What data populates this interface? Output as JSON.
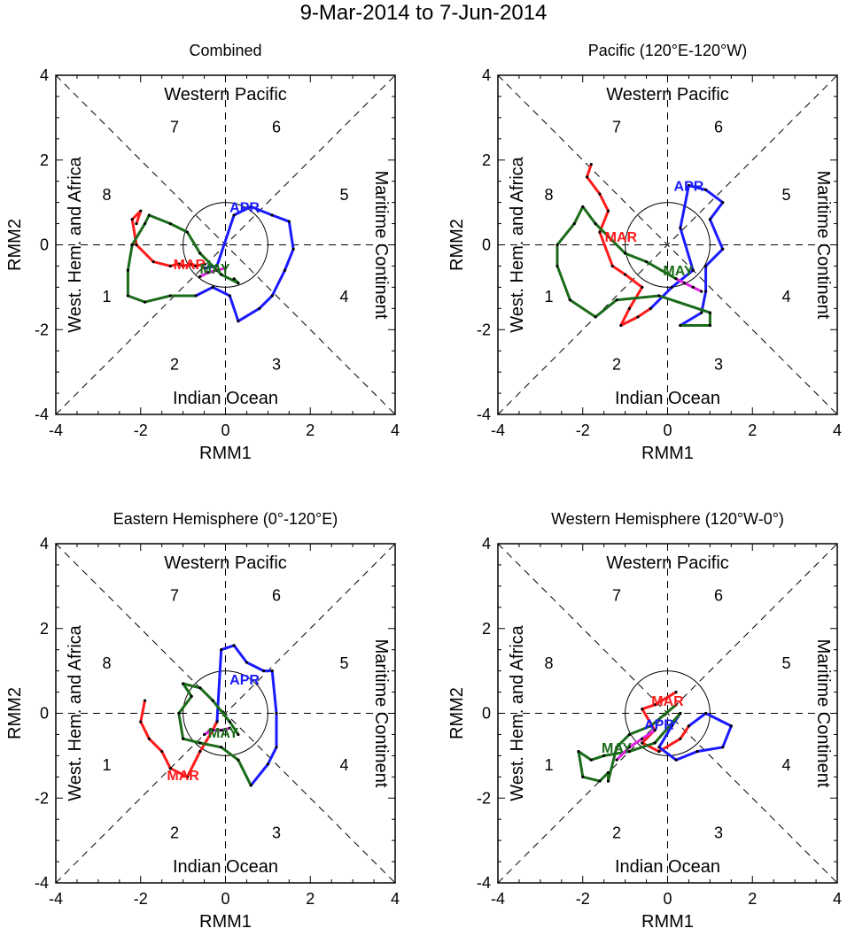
{
  "title": "9-Mar-2014 to 7-Jun-2014",
  "colors": {
    "MAR": "#ff1a1a",
    "APR": "#1a1aff",
    "MAY": "#1a6b1a",
    "JUN": "#e020e0",
    "axis": "#000000"
  },
  "chart_data": [
    {
      "type": "line",
      "title": "Combined",
      "xlabel": "RMM1",
      "ylabel": "RMM2",
      "xlim": [
        -4,
        4
      ],
      "ylim": [
        -4,
        4
      ],
      "ticks": [
        "-4",
        "-2",
        "0",
        "2",
        "4"
      ],
      "phase_numbers": [
        "1",
        "2",
        "3",
        "4",
        "5",
        "6",
        "7",
        "8"
      ],
      "region_labels": {
        "top": "Western Pacific",
        "bottom": "Indian Ocean",
        "left": "West. Hem. and Africa",
        "right": "Maritime Continent"
      },
      "month_labels": [
        {
          "text": "MAR",
          "x": -0.85,
          "y": -0.45,
          "month": "MAR"
        },
        {
          "text": "APR",
          "x": 0.45,
          "y": 0.9,
          "month": "APR"
        },
        {
          "text": "MAY",
          "x": -0.25,
          "y": -0.55,
          "month": "MAY"
        }
      ],
      "series": [
        {
          "name": "MAR",
          "month": "MAR",
          "points": [
            [
              -2.1,
              0.5
            ],
            [
              -2.0,
              0.8
            ],
            [
              -2.2,
              0.6
            ],
            [
              -2.1,
              0.0
            ],
            [
              -1.7,
              -0.4
            ],
            [
              -1.3,
              -0.5
            ],
            [
              -1.1,
              -0.45
            ],
            [
              -1.0,
              -0.5
            ],
            [
              -0.8,
              -0.45
            ],
            [
              -0.7,
              -0.5
            ],
            [
              -0.5,
              -0.45
            ]
          ]
        },
        {
          "name": "APR",
          "month": "APR",
          "points": [
            [
              -0.5,
              -0.55
            ],
            [
              -0.2,
              -0.5
            ],
            [
              0.2,
              0.7
            ],
            [
              0.6,
              0.9
            ],
            [
              1.1,
              0.7
            ],
            [
              1.5,
              0.55
            ],
            [
              1.6,
              -0.1
            ],
            [
              1.4,
              -0.6
            ],
            [
              1.1,
              -1.2
            ],
            [
              0.8,
              -1.5
            ],
            [
              0.3,
              -1.8
            ],
            [
              0.1,
              -1.2
            ],
            [
              -0.3,
              -1.0
            ],
            [
              -0.7,
              -1.2
            ]
          ]
        },
        {
          "name": "MAY",
          "month": "MAY",
          "points": [
            [
              -0.7,
              -1.2
            ],
            [
              -1.3,
              -1.2
            ],
            [
              -1.9,
              -1.35
            ],
            [
              -2.3,
              -1.2
            ],
            [
              -2.3,
              -0.6
            ],
            [
              -2.2,
              0.0
            ],
            [
              -1.9,
              0.5
            ],
            [
              -1.8,
              0.7
            ],
            [
              -1.3,
              0.5
            ],
            [
              -0.9,
              0.3
            ],
            [
              -0.6,
              -0.2
            ],
            [
              -0.1,
              -0.7
            ],
            [
              0.3,
              -0.9
            ],
            [
              0.2,
              -0.8
            ]
          ]
        },
        {
          "name": "JUN",
          "month": "JUN",
          "points": [
            [
              -0.6,
              -0.75
            ],
            [
              -0.4,
              -0.65
            ],
            [
              -0.2,
              -0.6
            ],
            [
              0.0,
              -0.55
            ]
          ]
        }
      ]
    },
    {
      "type": "line",
      "title": "Pacific (120°E-120°W)",
      "xlabel": "RMM1",
      "ylabel": "RMM2",
      "xlim": [
        -4,
        4
      ],
      "ylim": [
        -4,
        4
      ],
      "ticks": [
        "-4",
        "-2",
        "0",
        "2",
        "4"
      ],
      "phase_numbers": [
        "1",
        "2",
        "3",
        "4",
        "5",
        "6",
        "7",
        "8"
      ],
      "region_labels": {
        "top": "Western Pacific",
        "bottom": "Indian Ocean",
        "left": "West. Hem. and Africa",
        "right": "Maritime Continent"
      },
      "month_labels": [
        {
          "text": "MAR",
          "x": -1.1,
          "y": 0.2,
          "month": "MAR"
        },
        {
          "text": "APR",
          "x": 0.5,
          "y": 1.4,
          "month": "APR"
        },
        {
          "text": "MAY",
          "x": 0.25,
          "y": -0.6,
          "month": "MAY"
        }
      ],
      "series": [
        {
          "name": "MAR",
          "month": "MAR",
          "points": [
            [
              -1.8,
              1.9
            ],
            [
              -1.9,
              1.6
            ],
            [
              -1.6,
              1.2
            ],
            [
              -1.4,
              0.8
            ],
            [
              -1.6,
              0.3
            ],
            [
              -1.3,
              -0.5
            ],
            [
              -1.0,
              -0.7
            ],
            [
              -0.6,
              -1.0
            ],
            [
              -0.9,
              -1.5
            ],
            [
              -1.1,
              -1.9
            ],
            [
              -0.7,
              -1.7
            ],
            [
              -0.4,
              -1.5
            ]
          ]
        },
        {
          "name": "APR",
          "month": "APR",
          "points": [
            [
              -0.4,
              -1.5
            ],
            [
              0.1,
              -1.0
            ],
            [
              0.6,
              -0.6
            ],
            [
              0.3,
              0.4
            ],
            [
              0.5,
              1.4
            ],
            [
              0.9,
              1.3
            ],
            [
              1.3,
              1.0
            ],
            [
              1.0,
              0.6
            ],
            [
              1.3,
              -0.1
            ],
            [
              0.9,
              -0.5
            ],
            [
              0.9,
              -1.1
            ],
            [
              0.8,
              -1.6
            ],
            [
              0.3,
              -1.9
            ]
          ]
        },
        {
          "name": "MAY",
          "month": "MAY",
          "points": [
            [
              0.3,
              -1.9
            ],
            [
              1.0,
              -1.9
            ],
            [
              1.0,
              -1.6
            ],
            [
              -0.2,
              -1.2
            ],
            [
              -1.2,
              -1.3
            ],
            [
              -1.7,
              -1.7
            ],
            [
              -2.3,
              -1.3
            ],
            [
              -2.6,
              -0.5
            ],
            [
              -2.6,
              0.0
            ],
            [
              -2.2,
              0.5
            ],
            [
              -2.0,
              0.9
            ],
            [
              -1.7,
              0.5
            ],
            [
              -1.0,
              -0.2
            ],
            [
              -0.5,
              -0.4
            ],
            [
              0.2,
              -0.8
            ]
          ]
        },
        {
          "name": "JUN",
          "month": "JUN",
          "points": [
            [
              0.2,
              -0.8
            ],
            [
              0.4,
              -0.9
            ],
            [
              0.6,
              -1.0
            ],
            [
              0.8,
              -1.1
            ]
          ]
        }
      ]
    },
    {
      "type": "line",
      "title": "Eastern Hemisphere (0°-120°E)",
      "xlabel": "RMM1",
      "ylabel": "RMM2",
      "xlim": [
        -4,
        4
      ],
      "ylim": [
        -4,
        4
      ],
      "ticks": [
        "-4",
        "-2",
        "0",
        "2",
        "4"
      ],
      "phase_numbers": [
        "1",
        "2",
        "3",
        "4",
        "5",
        "6",
        "7",
        "8"
      ],
      "region_labels": {
        "top": "Western Pacific",
        "bottom": "Indian Ocean",
        "left": "West. Hem. and Africa",
        "right": "Maritime Continent"
      },
      "month_labels": [
        {
          "text": "MAR",
          "x": -1.0,
          "y": -1.45,
          "month": "MAR"
        },
        {
          "text": "APR",
          "x": 0.45,
          "y": 0.8,
          "month": "APR"
        },
        {
          "text": "MAY",
          "x": -0.05,
          "y": -0.45,
          "month": "MAY"
        }
      ],
      "series": [
        {
          "name": "MAR",
          "month": "MAR",
          "points": [
            [
              -1.9,
              0.3
            ],
            [
              -2.0,
              -0.2
            ],
            [
              -1.8,
              -0.6
            ],
            [
              -1.5,
              -0.9
            ],
            [
              -1.3,
              -1.3
            ],
            [
              -0.9,
              -1.5
            ],
            [
              -0.6,
              -0.9
            ],
            [
              -0.3,
              -0.4
            ],
            [
              -0.2,
              -0.2
            ]
          ]
        },
        {
          "name": "APR",
          "month": "APR",
          "points": [
            [
              -0.2,
              -0.2
            ],
            [
              -0.1,
              1.5
            ],
            [
              0.2,
              1.6
            ],
            [
              0.5,
              1.2
            ],
            [
              0.9,
              1.0
            ],
            [
              1.1,
              1.0
            ],
            [
              1.2,
              0.0
            ],
            [
              1.2,
              -0.8
            ],
            [
              1.0,
              -1.2
            ],
            [
              0.6,
              -1.7
            ]
          ]
        },
        {
          "name": "MAY",
          "month": "MAY",
          "points": [
            [
              0.6,
              -1.7
            ],
            [
              0.3,
              -1.1
            ],
            [
              -0.1,
              -0.8
            ],
            [
              -0.6,
              -0.7
            ],
            [
              -1.0,
              -0.6
            ],
            [
              -1.1,
              0.0
            ],
            [
              -0.8,
              0.4
            ],
            [
              -1.0,
              0.7
            ],
            [
              -0.6,
              0.6
            ],
            [
              -0.3,
              0.3
            ],
            [
              0.1,
              -0.2
            ],
            [
              0.3,
              -0.5
            ]
          ]
        },
        {
          "name": "JUN",
          "month": "JUN",
          "points": [
            [
              -0.5,
              -0.5
            ],
            [
              -0.3,
              -0.4
            ],
            [
              -0.1,
              -0.4
            ],
            [
              0.1,
              -0.35
            ]
          ]
        }
      ]
    },
    {
      "type": "line",
      "title": "Western Hemisphere (120°W-0°)",
      "xlabel": "RMM1",
      "ylabel": "RMM2",
      "xlim": [
        -4,
        4
      ],
      "ylim": [
        -4,
        4
      ],
      "ticks": [
        "-4",
        "-2",
        "0",
        "2",
        "4"
      ],
      "phase_numbers": [
        "1",
        "2",
        "3",
        "4",
        "5",
        "6",
        "7",
        "8"
      ],
      "region_labels": {
        "top": "Western Pacific",
        "bottom": "Indian Ocean",
        "left": "West. Hem. and Africa",
        "right": "Maritime Continent"
      },
      "month_labels": [
        {
          "text": "MAR",
          "x": 0.0,
          "y": 0.3,
          "month": "MAR"
        },
        {
          "text": "APR",
          "x": -0.2,
          "y": -0.25,
          "month": "APR"
        },
        {
          "text": "MAY",
          "x": -1.2,
          "y": -0.8,
          "month": "MAY"
        }
      ],
      "series": [
        {
          "name": "MAR",
          "month": "MAR",
          "points": [
            [
              0.2,
              0.5
            ],
            [
              -0.3,
              0.2
            ],
            [
              -0.6,
              0.1
            ],
            [
              -0.3,
              -0.4
            ],
            [
              -0.6,
              -0.7
            ],
            [
              -0.2,
              -0.9
            ],
            [
              0.3,
              -0.6
            ],
            [
              0.5,
              -0.3
            ]
          ]
        },
        {
          "name": "APR",
          "month": "APR",
          "points": [
            [
              0.5,
              -0.3
            ],
            [
              0.9,
              0.0
            ],
            [
              1.5,
              -0.3
            ],
            [
              1.3,
              -0.8
            ],
            [
              0.7,
              -0.9
            ],
            [
              0.2,
              -1.1
            ],
            [
              -0.2,
              -0.8
            ],
            [
              0.1,
              -0.3
            ],
            [
              0.3,
              0.0
            ]
          ]
        },
        {
          "name": "MAY",
          "month": "MAY",
          "points": [
            [
              0.3,
              0.0
            ],
            [
              -0.3,
              -0.7
            ],
            [
              -0.9,
              -0.9
            ],
            [
              -1.5,
              -1.0
            ],
            [
              -1.8,
              -1.1
            ],
            [
              -2.1,
              -0.9
            ],
            [
              -2.0,
              -1.5
            ],
            [
              -1.6,
              -1.6
            ],
            [
              -1.4,
              -1.4
            ],
            [
              -1.4,
              -1.6
            ],
            [
              -1.2,
              -0.8
            ],
            [
              -0.9,
              -0.5
            ],
            [
              -0.4,
              -0.3
            ],
            [
              0.2,
              0.2
            ]
          ]
        },
        {
          "name": "JUN",
          "month": "JUN",
          "points": [
            [
              -1.2,
              -1.1
            ],
            [
              -0.9,
              -0.8
            ],
            [
              -0.6,
              -0.6
            ],
            [
              -0.3,
              -0.4
            ]
          ]
        }
      ]
    }
  ]
}
